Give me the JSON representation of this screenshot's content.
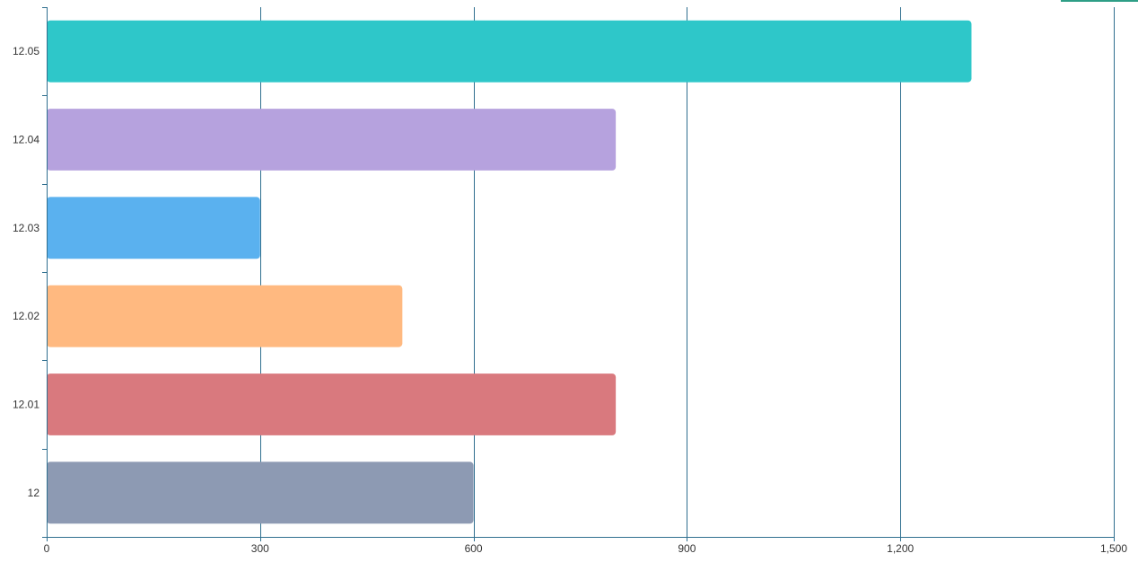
{
  "chart_data": {
    "type": "bar",
    "orientation": "horizontal",
    "categories": [
      "12",
      "12.01",
      "12.02",
      "12.03",
      "12.04",
      "12.05"
    ],
    "values": [
      600,
      800,
      500,
      300,
      800,
      1300
    ],
    "bar_colors": [
      "#8d9ab3",
      "#d9797e",
      "#ffb980",
      "#5ab1ef",
      "#b6a2de",
      "#2ec7c9"
    ],
    "xlim": [
      0,
      1500
    ],
    "x_ticks": [
      0,
      300,
      600,
      900,
      1200,
      1500
    ],
    "x_tick_labels": [
      "0",
      "300",
      "600",
      "900",
      "1,200",
      "1,500"
    ],
    "grid": "vertical",
    "title": "",
    "xlabel": "",
    "ylabel": "",
    "axis_color": "#2f6f8f",
    "accent_color": "#2e9e86"
  }
}
